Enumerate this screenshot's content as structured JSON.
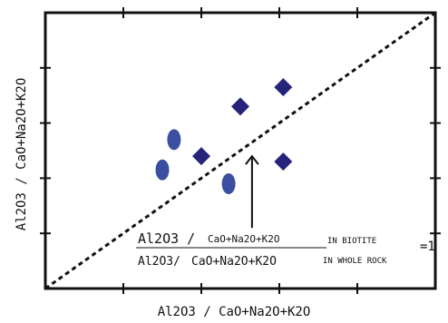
{
  "chart_data": {
    "type": "scatter",
    "title": "",
    "xlabel": "Al2O3 / CaO+Na2O+K2O",
    "ylabel": "Al2O3 / CaO+Na2O+K2O",
    "xlim": [
      0,
      100
    ],
    "ylim": [
      0,
      100
    ],
    "x_ticks": [
      20,
      40,
      60,
      80
    ],
    "y_ticks": [
      20,
      40,
      60,
      80
    ],
    "tick_labels_shown": false,
    "grid": false,
    "reference_line": {
      "style": "dashed",
      "x": [
        0,
        100
      ],
      "y": [
        0,
        100
      ]
    },
    "series": [
      {
        "marker": "diamond",
        "color": "#26247a",
        "points": [
          {
            "x": 40,
            "y": 48
          },
          {
            "x": 50,
            "y": 66
          },
          {
            "x": 61,
            "y": 73
          },
          {
            "x": 61,
            "y": 46
          }
        ]
      },
      {
        "marker": "ellipse",
        "color": "#3b4fa0",
        "points": [
          {
            "x": 33,
            "y": 54
          },
          {
            "x": 30,
            "y": 43
          },
          {
            "x": 47,
            "y": 38
          }
        ]
      }
    ],
    "annotation": {
      "numerator_left": "Al2O3 /",
      "numerator_right": "CaO+Na2O+K2O",
      "numerator_suffix": "IN BIOTITE",
      "denominator_left": "Al2O3/",
      "denominator_right": "CaO+Na2O+K2O",
      "denominator_suffix": "IN WHOLE ROCK",
      "equals": "=1",
      "arrow_to": {
        "x": 53,
        "y": 48
      },
      "arrow_from": {
        "x": 53,
        "y": 22
      }
    }
  }
}
